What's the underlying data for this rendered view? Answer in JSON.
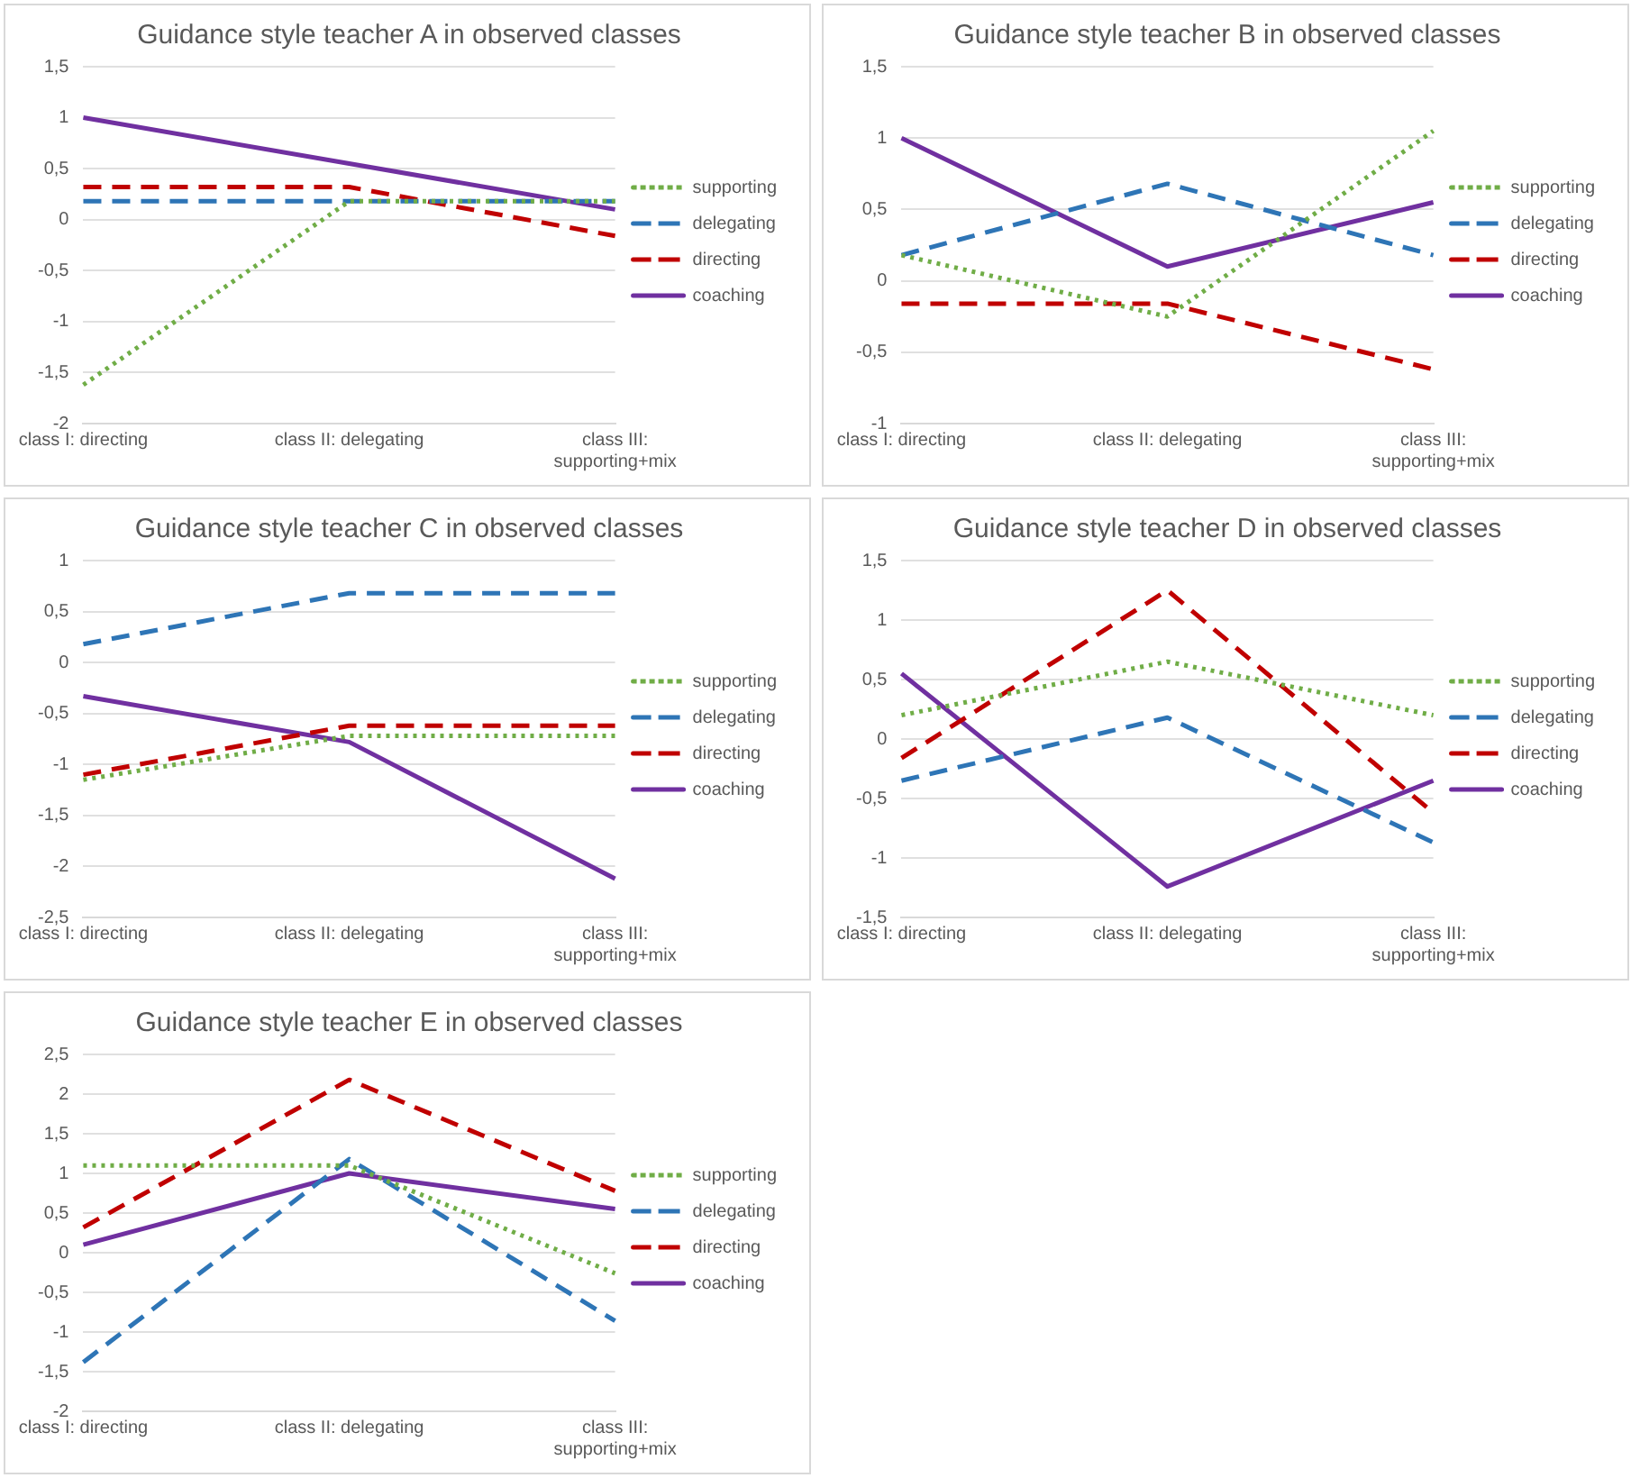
{
  "chart_data": [
    {
      "type": "line",
      "title": "Guidance style teacher A in observed classes",
      "categories": [
        "class I: directing",
        "class II: delegating",
        "class III: supporting+mix"
      ],
      "ylim": [
        -2,
        1.5
      ],
      "yticks": [
        {
          "value": -2,
          "label": "-2"
        },
        {
          "value": -1.5,
          "label": "-1,5"
        },
        {
          "value": -1,
          "label": "-1"
        },
        {
          "value": -0.5,
          "label": "-0,5"
        },
        {
          "value": 0,
          "label": "0"
        },
        {
          "value": 0.5,
          "label": "0,5"
        },
        {
          "value": 1,
          "label": "1"
        },
        {
          "value": 1.5,
          "label": "1,5"
        }
      ],
      "grid": "y",
      "legend": "right",
      "marker": "none",
      "series": [
        {
          "name": "supporting",
          "color": "#70ad47",
          "line_style": "dotted",
          "values": [
            -1.62,
            0.18,
            0.18
          ]
        },
        {
          "name": "delegating",
          "color": "#2e75b6",
          "line_style": "dashed",
          "values": [
            0.18,
            0.18,
            0.18
          ]
        },
        {
          "name": "directing",
          "color": "#c00000",
          "line_style": "dashed",
          "values": [
            0.32,
            0.32,
            -0.16
          ]
        },
        {
          "name": "coaching",
          "color": "#7030a0",
          "line_style": "solid",
          "values": [
            1,
            0.55,
            0.1
          ]
        }
      ]
    },
    {
      "type": "line",
      "title": "Guidance style teacher B in observed classes",
      "categories": [
        "class I: directing",
        "class II: delegating",
        "class III: supporting+mix"
      ],
      "ylim": [
        -1,
        1.5
      ],
      "yticks": [
        {
          "value": -1,
          "label": "-1"
        },
        {
          "value": -0.5,
          "label": "-0,5"
        },
        {
          "value": 0,
          "label": "0"
        },
        {
          "value": 0.5,
          "label": "0,5"
        },
        {
          "value": 1,
          "label": "1"
        },
        {
          "value": 1.5,
          "label": "1,5"
        }
      ],
      "grid": "y",
      "legend": "right",
      "marker": "none",
      "series": [
        {
          "name": "supporting",
          "color": "#70ad47",
          "line_style": "dotted",
          "values": [
            0.18,
            -0.25,
            1.05
          ]
        },
        {
          "name": "delegating",
          "color": "#2e75b6",
          "line_style": "dashed",
          "values": [
            0.18,
            0.68,
            0.18
          ]
        },
        {
          "name": "directing",
          "color": "#c00000",
          "line_style": "dashed",
          "values": [
            -0.16,
            -0.16,
            -0.62
          ]
        },
        {
          "name": "coaching",
          "color": "#7030a0",
          "line_style": "solid",
          "values": [
            1,
            0.1,
            0.55
          ]
        }
      ]
    },
    {
      "type": "line",
      "title": "Guidance style teacher C in observed classes",
      "categories": [
        "class I: directing",
        "class II: delegating",
        "class III: supporting+mix"
      ],
      "ylim": [
        -2.5,
        1
      ],
      "yticks": [
        {
          "value": -2.5,
          "label": "-2,5"
        },
        {
          "value": -2,
          "label": "-2"
        },
        {
          "value": -1.5,
          "label": "-1,5"
        },
        {
          "value": -1,
          "label": "-1"
        },
        {
          "value": -0.5,
          "label": "-0,5"
        },
        {
          "value": 0,
          "label": "0"
        },
        {
          "value": 0.5,
          "label": "0,5"
        },
        {
          "value": 1,
          "label": "1"
        }
      ],
      "grid": "y",
      "legend": "right",
      "marker": "none",
      "series": [
        {
          "name": "supporting",
          "color": "#70ad47",
          "line_style": "dotted",
          "values": [
            -1.15,
            -0.72,
            -0.72
          ]
        },
        {
          "name": "delegating",
          "color": "#2e75b6",
          "line_style": "dashed",
          "values": [
            0.18,
            0.68,
            0.68
          ]
        },
        {
          "name": "directing",
          "color": "#c00000",
          "line_style": "dashed",
          "values": [
            -1.1,
            -0.62,
            -0.62
          ]
        },
        {
          "name": "coaching",
          "color": "#7030a0",
          "line_style": "solid",
          "values": [
            -0.33,
            -0.78,
            -2.12
          ]
        }
      ]
    },
    {
      "type": "line",
      "title": "Guidance style teacher D in observed classes",
      "categories": [
        "class I: directing",
        "class II: delegating",
        "class III: supporting+mix"
      ],
      "ylim": [
        -1.5,
        1.5
      ],
      "yticks": [
        {
          "value": -1.5,
          "label": "-1,5"
        },
        {
          "value": -1,
          "label": "-1"
        },
        {
          "value": -0.5,
          "label": "-0,5"
        },
        {
          "value": 0,
          "label": "0"
        },
        {
          "value": 0.5,
          "label": "0,5"
        },
        {
          "value": 1,
          "label": "1"
        },
        {
          "value": 1.5,
          "label": "1,5"
        }
      ],
      "grid": "y",
      "legend": "right",
      "marker": "none",
      "series": [
        {
          "name": "supporting",
          "color": "#70ad47",
          "line_style": "dotted",
          "values": [
            0.2,
            0.65,
            0.2
          ]
        },
        {
          "name": "delegating",
          "color": "#2e75b6",
          "line_style": "dashed",
          "values": [
            -0.35,
            0.18,
            -0.87
          ]
        },
        {
          "name": "directing",
          "color": "#c00000",
          "line_style": "dashed",
          "values": [
            -0.16,
            1.25,
            -0.62
          ]
        },
        {
          "name": "coaching",
          "color": "#7030a0",
          "line_style": "solid",
          "values": [
            0.55,
            -1.24,
            -0.35
          ]
        }
      ]
    },
    {
      "type": "line",
      "title": "Guidance style teacher E in observed classes",
      "categories": [
        "class I: directing",
        "class II: delegating",
        "class III: supporting+mix"
      ],
      "ylim": [
        -2,
        2.5
      ],
      "yticks": [
        {
          "value": -2,
          "label": "-2"
        },
        {
          "value": -1.5,
          "label": "-1,5"
        },
        {
          "value": -1,
          "label": "-1"
        },
        {
          "value": -0.5,
          "label": "-0,5"
        },
        {
          "value": 0,
          "label": "0"
        },
        {
          "value": 0.5,
          "label": "0,5"
        },
        {
          "value": 1,
          "label": "1"
        },
        {
          "value": 1.5,
          "label": "1,5"
        },
        {
          "value": 2,
          "label": "2"
        },
        {
          "value": 2.5,
          "label": "2,5"
        }
      ],
      "grid": "y",
      "legend": "right",
      "marker": "none",
      "series": [
        {
          "name": "supporting",
          "color": "#70ad47",
          "line_style": "dotted",
          "values": [
            1.1,
            1.1,
            -0.26
          ]
        },
        {
          "name": "delegating",
          "color": "#2e75b6",
          "line_style": "dashed",
          "values": [
            -1.38,
            1.18,
            -0.86
          ]
        },
        {
          "name": "directing",
          "color": "#c00000",
          "line_style": "dashed",
          "values": [
            0.32,
            2.18,
            0.78
          ]
        },
        {
          "name": "coaching",
          "color": "#7030a0",
          "line_style": "solid",
          "values": [
            0.1,
            1,
            0.55
          ]
        }
      ]
    }
  ]
}
